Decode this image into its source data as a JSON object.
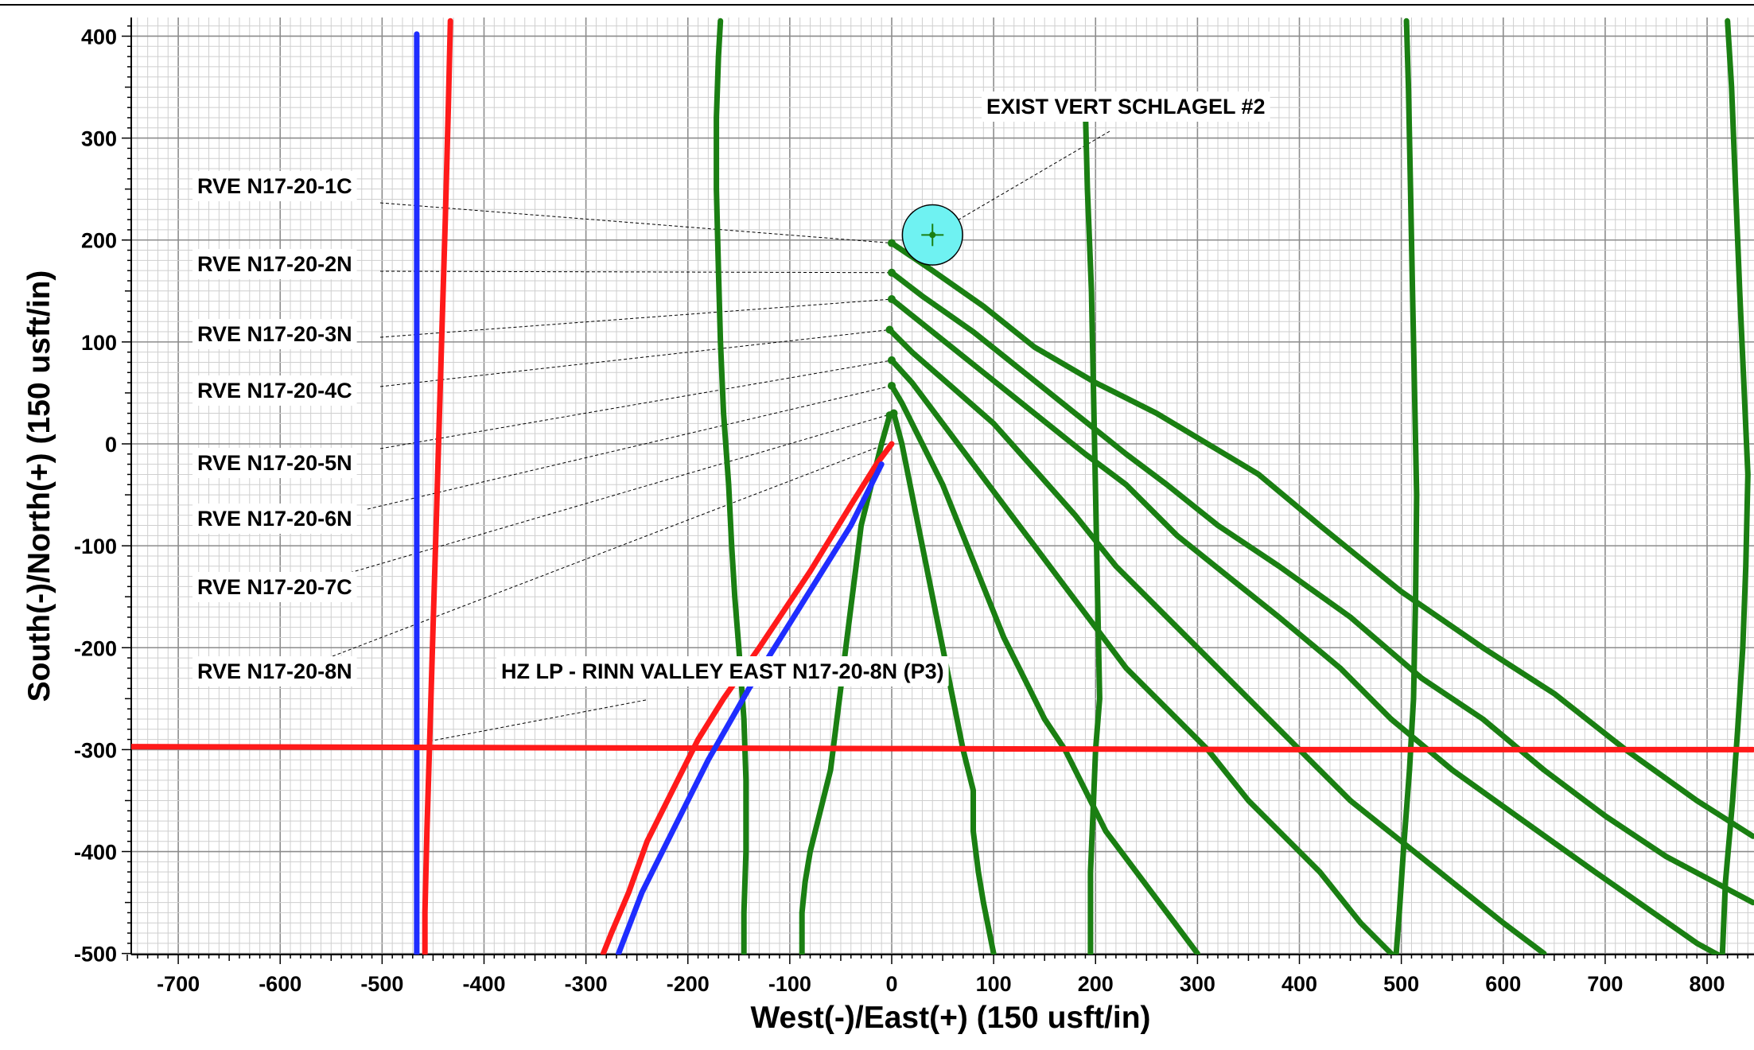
{
  "chart_data": {
    "type": "line",
    "xlabel": "West(-)/East(+) (150 usft/in)",
    "ylabel": "South(-)/North(+) (150 usft/in)",
    "xlim": [
      -750,
      845
    ],
    "ylim": [
      -500,
      415
    ],
    "x_ticks": [
      -700,
      -600,
      -500,
      -400,
      -300,
      -200,
      -100,
      0,
      100,
      200,
      300,
      400,
      500,
      600,
      700,
      800
    ],
    "y_ticks": [
      -500,
      -400,
      -300,
      -200,
      -100,
      0,
      100,
      200,
      300,
      400
    ],
    "grid": true,
    "colors": {
      "grid_minor": "#cfcfcf",
      "grid_major": "#8c8c8c",
      "green": "#1a7f12",
      "red": "#ff1a1a",
      "blue": "#1f2dff",
      "target_fill": "#6ff2f2"
    },
    "series": [
      {
        "color": "green",
        "points": [
          [
            0,
            197
          ],
          [
            40,
            170
          ],
          [
            90,
            135
          ],
          [
            140,
            95
          ],
          [
            200,
            60
          ],
          [
            260,
            30
          ],
          [
            310,
            0
          ],
          [
            360,
            -30
          ],
          [
            420,
            -80
          ],
          [
            500,
            -145
          ],
          [
            580,
            -200
          ],
          [
            650,
            -245
          ],
          [
            720,
            -300
          ],
          [
            790,
            -350
          ],
          [
            845,
            -385
          ]
        ]
      },
      {
        "color": "green",
        "points": [
          [
            0,
            168
          ],
          [
            30,
            145
          ],
          [
            80,
            110
          ],
          [
            130,
            70
          ],
          [
            180,
            30
          ],
          [
            230,
            -10
          ],
          [
            270,
            -40
          ],
          [
            320,
            -80
          ],
          [
            380,
            -120
          ],
          [
            450,
            -170
          ],
          [
            520,
            -230
          ],
          [
            580,
            -270
          ],
          [
            640,
            -320
          ],
          [
            700,
            -365
          ],
          [
            760,
            -405
          ],
          [
            845,
            -450
          ]
        ]
      },
      {
        "color": "green",
        "points": [
          [
            0,
            142
          ],
          [
            40,
            110
          ],
          [
            90,
            70
          ],
          [
            140,
            30
          ],
          [
            190,
            -10
          ],
          [
            230,
            -40
          ],
          [
            280,
            -90
          ],
          [
            330,
            -130
          ],
          [
            380,
            -170
          ],
          [
            440,
            -220
          ],
          [
            490,
            -270
          ],
          [
            550,
            -320
          ],
          [
            620,
            -370
          ],
          [
            690,
            -420
          ],
          [
            740,
            -455
          ],
          [
            790,
            -490
          ],
          [
            845,
            -520
          ]
        ]
      },
      {
        "color": "green",
        "points": [
          [
            -2,
            112
          ],
          [
            20,
            90
          ],
          [
            60,
            55
          ],
          [
            100,
            20
          ],
          [
            140,
            -25
          ],
          [
            180,
            -70
          ],
          [
            220,
            -120
          ],
          [
            260,
            -160
          ],
          [
            310,
            -210
          ],
          [
            360,
            -260
          ],
          [
            400,
            -300
          ],
          [
            450,
            -350
          ],
          [
            500,
            -390
          ],
          [
            550,
            -430
          ],
          [
            600,
            -470
          ],
          [
            640,
            -500
          ]
        ]
      },
      {
        "color": "green",
        "points": [
          [
            0,
            82
          ],
          [
            20,
            60
          ],
          [
            50,
            20
          ],
          [
            80,
            -20
          ],
          [
            110,
            -60
          ],
          [
            140,
            -100
          ],
          [
            170,
            -140
          ],
          [
            200,
            -180
          ],
          [
            230,
            -220
          ],
          [
            270,
            -260
          ],
          [
            310,
            -300
          ],
          [
            350,
            -350
          ],
          [
            390,
            -390
          ],
          [
            420,
            -420
          ],
          [
            460,
            -470
          ],
          [
            490,
            -500
          ]
        ]
      },
      {
        "color": "green",
        "points": [
          [
            0,
            57
          ],
          [
            10,
            40
          ],
          [
            30,
            0
          ],
          [
            50,
            -40
          ],
          [
            70,
            -90
          ],
          [
            90,
            -140
          ],
          [
            110,
            -190
          ],
          [
            130,
            -230
          ],
          [
            150,
            -270
          ],
          [
            170,
            -300
          ],
          [
            190,
            -340
          ],
          [
            210,
            -380
          ],
          [
            240,
            -420
          ],
          [
            270,
            -460
          ],
          [
            300,
            -500
          ]
        ]
      },
      {
        "color": "green",
        "points": [
          [
            2,
            30
          ],
          [
            10,
            0
          ],
          [
            20,
            -50
          ],
          [
            30,
            -100
          ],
          [
            40,
            -150
          ],
          [
            50,
            -200
          ],
          [
            60,
            -250
          ],
          [
            70,
            -300
          ],
          [
            80,
            -340
          ],
          [
            80,
            -380
          ],
          [
            85,
            -420
          ],
          [
            90,
            -450
          ],
          [
            100,
            -500
          ]
        ]
      },
      {
        "color": "green",
        "points": [
          [
            -2,
            28
          ],
          [
            -10,
            0
          ],
          [
            -20,
            -40
          ],
          [
            -30,
            -80
          ],
          [
            -35,
            -120
          ],
          [
            -40,
            -160
          ],
          [
            -45,
            -200
          ],
          [
            -50,
            -240
          ],
          [
            -55,
            -280
          ],
          [
            -60,
            -320
          ],
          [
            -70,
            -360
          ],
          [
            -80,
            -400
          ],
          [
            -85,
            -430
          ],
          [
            -88,
            -460
          ],
          [
            -88,
            -500
          ]
        ]
      },
      {
        "color": "green",
        "points": [
          [
            -168,
            415
          ],
          [
            -170,
            380
          ],
          [
            -172,
            320
          ],
          [
            -172,
            250
          ],
          [
            -170,
            170
          ],
          [
            -168,
            100
          ],
          [
            -165,
            30
          ],
          [
            -160,
            -40
          ],
          [
            -157,
            -100
          ],
          [
            -154,
            -150
          ],
          [
            -150,
            -200
          ],
          [
            -145,
            -270
          ],
          [
            -143,
            -330
          ],
          [
            -143,
            -400
          ],
          [
            -145,
            -460
          ],
          [
            -145,
            -500
          ]
        ]
      },
      {
        "color": "green",
        "points": [
          [
            190,
            330
          ],
          [
            192,
            250
          ],
          [
            196,
            150
          ],
          [
            198,
            50
          ],
          [
            200,
            -50
          ],
          [
            202,
            -150
          ],
          [
            204,
            -250
          ],
          [
            200,
            -300
          ],
          [
            198,
            -350
          ],
          [
            195,
            -420
          ],
          [
            195,
            -500
          ]
        ]
      },
      {
        "color": "green",
        "points": [
          [
            505,
            415
          ],
          [
            507,
            350
          ],
          [
            509,
            250
          ],
          [
            511,
            150
          ],
          [
            513,
            50
          ],
          [
            515,
            -50
          ],
          [
            514,
            -150
          ],
          [
            512,
            -250
          ],
          [
            508,
            -320
          ],
          [
            502,
            -400
          ],
          [
            498,
            -460
          ],
          [
            495,
            -500
          ]
        ]
      },
      {
        "color": "green",
        "points": [
          [
            820,
            415
          ],
          [
            824,
            350
          ],
          [
            828,
            250
          ],
          [
            832,
            150
          ],
          [
            836,
            60
          ],
          [
            840,
            -30
          ],
          [
            838,
            -120
          ],
          [
            835,
            -200
          ],
          [
            830,
            -280
          ],
          [
            825,
            -350
          ],
          [
            818,
            -430
          ],
          [
            815,
            -500
          ]
        ]
      },
      {
        "color": "red",
        "points": [
          [
            -433,
            415
          ],
          [
            -435,
            330
          ],
          [
            -438,
            220
          ],
          [
            -441,
            120
          ],
          [
            -444,
            20
          ],
          [
            -447,
            -80
          ],
          [
            -450,
            -180
          ],
          [
            -453,
            -280
          ],
          [
            -456,
            -380
          ],
          [
            -458,
            -460
          ],
          [
            -458,
            -500
          ]
        ]
      },
      {
        "color": "blue",
        "points": [
          [
            -466,
            402
          ],
          [
            -466,
            250
          ],
          [
            -466,
            100
          ],
          [
            -466,
            -50
          ],
          [
            -466,
            -200
          ],
          [
            -466,
            -350
          ],
          [
            -466,
            -500
          ]
        ]
      },
      {
        "color": "red",
        "points": [
          [
            -770,
            -297
          ],
          [
            -400,
            -298
          ],
          [
            0,
            -299
          ],
          [
            400,
            -300
          ],
          [
            845,
            -300
          ]
        ]
      },
      {
        "color": "red",
        "points": [
          [
            0,
            0
          ],
          [
            -15,
            -20
          ],
          [
            -40,
            -60
          ],
          [
            -80,
            -125
          ],
          [
            -130,
            -200
          ],
          [
            -165,
            -250
          ],
          [
            -190,
            -290
          ],
          [
            -215,
            -340
          ],
          [
            -240,
            -390
          ],
          [
            -258,
            -440
          ],
          [
            -275,
            -480
          ],
          [
            -283,
            -500
          ]
        ]
      },
      {
        "color": "blue",
        "points": [
          [
            -10,
            -20
          ],
          [
            -40,
            -80
          ],
          [
            -90,
            -160
          ],
          [
            -140,
            -240
          ],
          [
            -180,
            -310
          ],
          [
            -215,
            -380
          ],
          [
            -245,
            -440
          ],
          [
            -268,
            -500
          ]
        ]
      }
    ],
    "target": {
      "label": "EXIST VERT SCHLAGEL #2",
      "x": 40,
      "y": 205,
      "radius": 36
    },
    "annotations": [
      {
        "text": "RVE  N17-20-1C",
        "to": [
          0,
          197
        ]
      },
      {
        "text": "RVE  N17-20-2N",
        "to": [
          0,
          168
        ]
      },
      {
        "text": "RVE  N17-20-3N",
        "to": [
          0,
          142
        ]
      },
      {
        "text": "RVE  N17-20-4C",
        "to": [
          -2,
          112
        ]
      },
      {
        "text": "RVE  N17-20-5N",
        "to": [
          0,
          82
        ]
      },
      {
        "text": "RVE  N17-20-6N",
        "to": [
          0,
          57
        ]
      },
      {
        "text": "RVE  N17-20-7C",
        "to": [
          2,
          30
        ]
      },
      {
        "text": "RVE  N17-20-8N",
        "to": [
          -5,
          0
        ]
      },
      {
        "text": "HZ LP - RINN VALLEY EAST N17-20-8N (P3)",
        "to": [
          -455,
          -292
        ]
      },
      {
        "text": "EXIST VERT SCHLAGEL #2",
        "to": [
          40,
          205
        ]
      }
    ]
  }
}
